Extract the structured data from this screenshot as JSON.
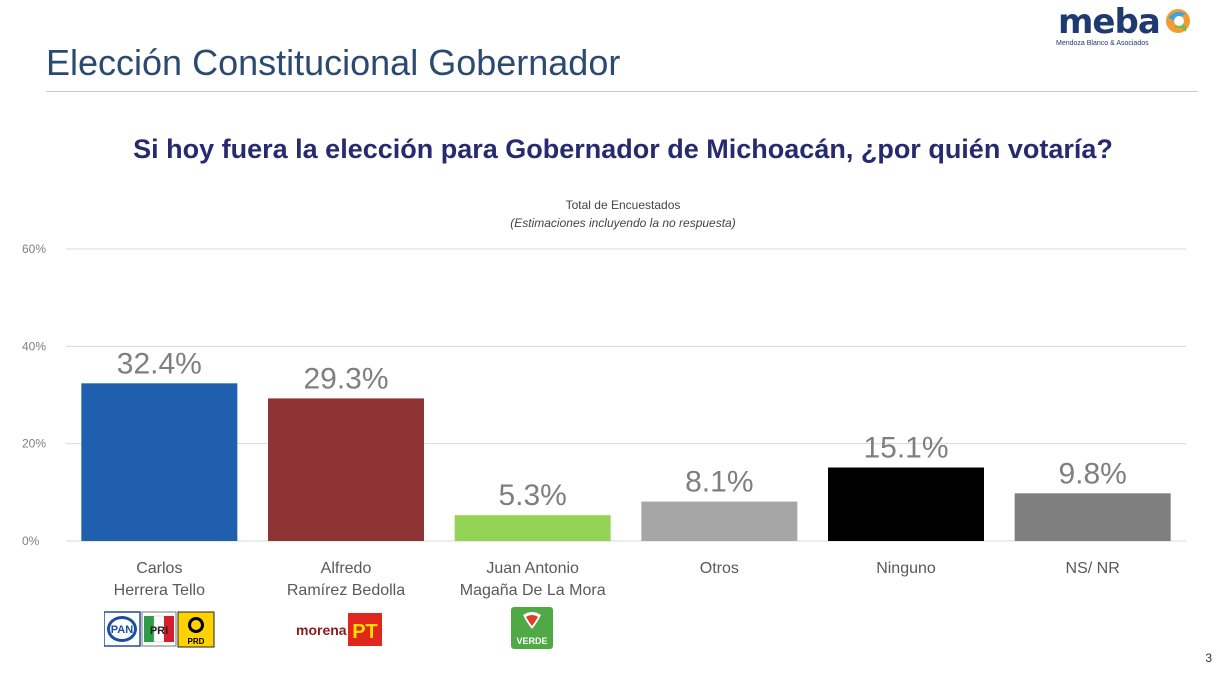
{
  "header": {
    "title": "Elección Constitucional Gobernador",
    "logo_text": "meba",
    "logo_subtext": "Mendoza Blanco & Asociados"
  },
  "question": "Si hoy fuera la elección para Gobernador de Michoacán, ¿por quién votaría?",
  "page_number": "3",
  "party_logos": {
    "herrera": [
      "PAN",
      "PRI",
      "PRD"
    ],
    "ramirez": [
      "morena",
      "PT"
    ],
    "magana": [
      "VERDE"
    ]
  },
  "chart_data": {
    "type": "bar",
    "title": "Total de Encuestados",
    "subtitle": "(Estimaciones incluyendo la no respuesta)",
    "categories": [
      [
        "Carlos",
        "Herrera Tello"
      ],
      [
        "Alfredo",
        "Ramírez Bedolla"
      ],
      [
        "Juan Antonio",
        "Magaña De La Mora"
      ],
      [
        "Otros"
      ],
      [
        "Ninguno"
      ],
      [
        "NS/ NR"
      ]
    ],
    "values": [
      32.4,
      29.3,
      5.3,
      8.1,
      15.1,
      9.8
    ],
    "value_labels": [
      "32.4%",
      "29.3%",
      "5.3%",
      "8.1%",
      "15.1%",
      "9.8%"
    ],
    "colors": [
      "#1f5fad",
      "#8e3434",
      "#93d356",
      "#a6a6a6",
      "#000000",
      "#7f7f7f"
    ],
    "ylim": [
      0,
      60
    ],
    "yticks": [
      "0%",
      "20%",
      "40%",
      "60%"
    ],
    "grid": true,
    "legend": "none"
  }
}
